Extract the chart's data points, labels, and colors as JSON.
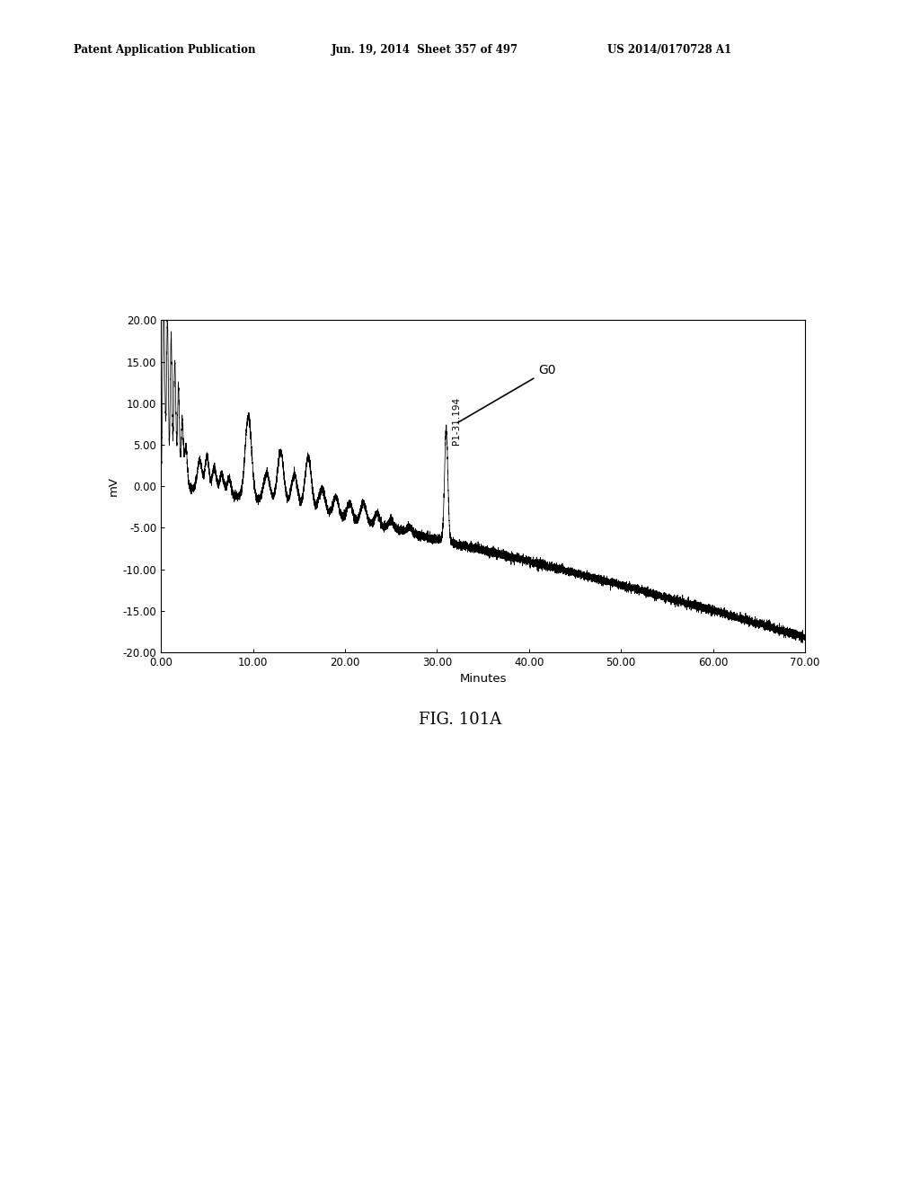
{
  "title": "FIG. 101A",
  "header_left": "Patent Application Publication",
  "header_middle": "Jun. 19, 2014  Sheet 357 of 497",
  "header_right": "US 2014/0170728 A1",
  "xlabel": "Minutes",
  "ylabel": "mV",
  "xlim": [
    0.0,
    70.0
  ],
  "ylim": [
    -20.0,
    20.0
  ],
  "xticks": [
    0.0,
    10.0,
    20.0,
    30.0,
    40.0,
    50.0,
    60.0,
    70.0
  ],
  "yticks": [
    -20.0,
    -15.0,
    -10.0,
    -5.0,
    0.0,
    5.0,
    10.0,
    15.0,
    20.0
  ],
  "annotation_label": "G0",
  "annotation_peak_label": "P1-31.194",
  "background_color": "#ffffff",
  "line_color": "#000000",
  "figure_width": 10.24,
  "figure_height": 13.2,
  "dpi": 100
}
